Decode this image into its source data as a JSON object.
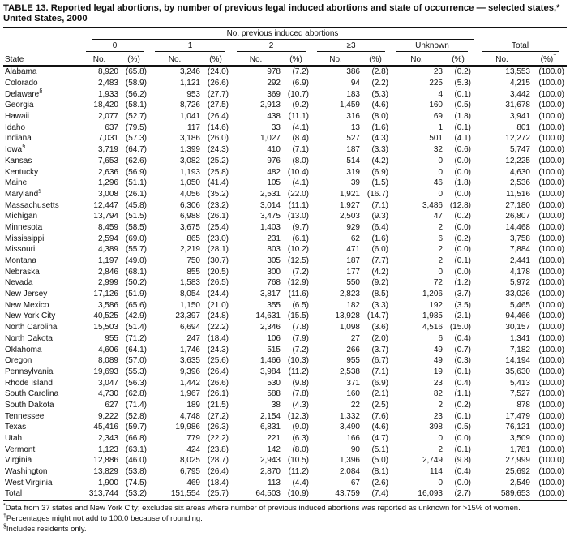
{
  "title": {
    "line1": "TABLE 13. Reported legal abortions, by number of previous legal induced abortions and state of occurrence — selected states,*",
    "line2": "United States, 2000"
  },
  "header": {
    "spanner": "No. previous induced abortions",
    "groups": [
      "0",
      "1",
      "2",
      "≥3",
      "Unknown",
      "Total"
    ],
    "state_col": "State",
    "no_label": "No.",
    "pct_label": "(%)",
    "total_marker": "†"
  },
  "rows": [
    {
      "state": "Alabama",
      "marker": "",
      "v": [
        "8,920",
        "(65.8)",
        "3,246",
        "(24.0)",
        "978",
        "(7.2)",
        "386",
        "(2.8)",
        "23",
        "(0.2)",
        "13,553",
        "(100.0)"
      ]
    },
    {
      "state": "Colorado",
      "marker": "",
      "v": [
        "2,483",
        "(58.9)",
        "1,121",
        "(26.6)",
        "292",
        "(6.9)",
        "94",
        "(2.2)",
        "225",
        "(5.3)",
        "4,215",
        "(100.0)"
      ]
    },
    {
      "state": "Delaware",
      "marker": "§",
      "v": [
        "1,933",
        "(56.2)",
        "953",
        "(27.7)",
        "369",
        "(10.7)",
        "183",
        "(5.3)",
        "4",
        "(0.1)",
        "3,442",
        "(100.0)"
      ]
    },
    {
      "state": "Georgia",
      "marker": "",
      "v": [
        "18,420",
        "(58.1)",
        "8,726",
        "(27.5)",
        "2,913",
        "(9.2)",
        "1,459",
        "(4.6)",
        "160",
        "(0.5)",
        "31,678",
        "(100.0)"
      ]
    },
    {
      "state": "Hawaii",
      "marker": "",
      "v": [
        "2,077",
        "(52.7)",
        "1,041",
        "(26.4)",
        "438",
        "(11.1)",
        "316",
        "(8.0)",
        "69",
        "(1.8)",
        "3,941",
        "(100.0)"
      ]
    },
    {
      "state": "Idaho",
      "marker": "",
      "v": [
        "637",
        "(79.5)",
        "117",
        "(14.6)",
        "33",
        "(4.1)",
        "13",
        "(1.6)",
        "1",
        "(0.1)",
        "801",
        "(100.0)"
      ]
    },
    {
      "state": "Indiana",
      "marker": "",
      "v": [
        "7,031",
        "(57.3)",
        "3,186",
        "(26.0)",
        "1,027",
        "(8.4)",
        "527",
        "(4.3)",
        "501",
        "(4.1)",
        "12,272",
        "(100.0)"
      ]
    },
    {
      "state": "Iowa",
      "marker": "§",
      "v": [
        "3,719",
        "(64.7)",
        "1,399",
        "(24.3)",
        "410",
        "(7.1)",
        "187",
        "(3.3)",
        "32",
        "(0.6)",
        "5,747",
        "(100.0)"
      ]
    },
    {
      "state": "Kansas",
      "marker": "",
      "v": [
        "7,653",
        "(62.6)",
        "3,082",
        "(25.2)",
        "976",
        "(8.0)",
        "514",
        "(4.2)",
        "0",
        "(0.0)",
        "12,225",
        "(100.0)"
      ]
    },
    {
      "state": "Kentucky",
      "marker": "",
      "v": [
        "2,636",
        "(56.9)",
        "1,193",
        "(25.8)",
        "482",
        "(10.4)",
        "319",
        "(6.9)",
        "0",
        "(0.0)",
        "4,630",
        "(100.0)"
      ]
    },
    {
      "state": "Maine",
      "marker": "",
      "v": [
        "1,296",
        "(51.1)",
        "1,050",
        "(41.4)",
        "105",
        "(4.1)",
        "39",
        "(1.5)",
        "46",
        "(1.8)",
        "2,536",
        "(100.0)"
      ]
    },
    {
      "state": "Maryland",
      "marker": "§",
      "v": [
        "3,008",
        "(26.1)",
        "4,056",
        "(35.2)",
        "2,531",
        "(22.0)",
        "1,921",
        "(16.7)",
        "0",
        "(0.0)",
        "11,516",
        "(100.0)"
      ]
    },
    {
      "state": "Massachusetts",
      "marker": "",
      "v": [
        "12,447",
        "(45.8)",
        "6,306",
        "(23.2)",
        "3,014",
        "(11.1)",
        "1,927",
        "(7.1)",
        "3,486",
        "(12.8)",
        "27,180",
        "(100.0)"
      ]
    },
    {
      "state": "Michigan",
      "marker": "",
      "v": [
        "13,794",
        "(51.5)",
        "6,988",
        "(26.1)",
        "3,475",
        "(13.0)",
        "2,503",
        "(9.3)",
        "47",
        "(0.2)",
        "26,807",
        "(100.0)"
      ]
    },
    {
      "state": "Minnesota",
      "marker": "",
      "v": [
        "8,459",
        "(58.5)",
        "3,675",
        "(25.4)",
        "1,403",
        "(9.7)",
        "929",
        "(6.4)",
        "2",
        "(0.0)",
        "14,468",
        "(100.0)"
      ]
    },
    {
      "state": "Mississippi",
      "marker": "",
      "v": [
        "2,594",
        "(69.0)",
        "865",
        "(23.0)",
        "231",
        "(6.1)",
        "62",
        "(1.6)",
        "6",
        "(0.2)",
        "3,758",
        "(100.0)"
      ]
    },
    {
      "state": "Missouri",
      "marker": "",
      "v": [
        "4,389",
        "(55.7)",
        "2,219",
        "(28.1)",
        "803",
        "(10.2)",
        "471",
        "(6.0)",
        "2",
        "(0.0)",
        "7,884",
        "(100.0)"
      ]
    },
    {
      "state": "Montana",
      "marker": "",
      "v": [
        "1,197",
        "(49.0)",
        "750",
        "(30.7)",
        "305",
        "(12.5)",
        "187",
        "(7.7)",
        "2",
        "(0.1)",
        "2,441",
        "(100.0)"
      ]
    },
    {
      "state": "Nebraska",
      "marker": "",
      "v": [
        "2,846",
        "(68.1)",
        "855",
        "(20.5)",
        "300",
        "(7.2)",
        "177",
        "(4.2)",
        "0",
        "(0.0)",
        "4,178",
        "(100.0)"
      ]
    },
    {
      "state": "Nevada",
      "marker": "",
      "v": [
        "2,999",
        "(50.2)",
        "1,583",
        "(26.5)",
        "768",
        "(12.9)",
        "550",
        "(9.2)",
        "72",
        "(1.2)",
        "5,972",
        "(100.0)"
      ]
    },
    {
      "state": "New Jersey",
      "marker": "",
      "v": [
        "17,126",
        "(51.9)",
        "8,054",
        "(24.4)",
        "3,817",
        "(11.6)",
        "2,823",
        "(8.5)",
        "1,206",
        "(3.7)",
        "33,026",
        "(100.0)"
      ]
    },
    {
      "state": "New Mexico",
      "marker": "",
      "v": [
        "3,586",
        "(65.6)",
        "1,150",
        "(21.0)",
        "355",
        "(6.5)",
        "182",
        "(3.3)",
        "192",
        "(3.5)",
        "5,465",
        "(100.0)"
      ]
    },
    {
      "state": "New York City",
      "marker": "",
      "v": [
        "40,525",
        "(42.9)",
        "23,397",
        "(24.8)",
        "14,631",
        "(15.5)",
        "13,928",
        "(14.7)",
        "1,985",
        "(2.1)",
        "94,466",
        "(100.0)"
      ]
    },
    {
      "state": "North Carolina",
      "marker": "",
      "v": [
        "15,503",
        "(51.4)",
        "6,694",
        "(22.2)",
        "2,346",
        "(7.8)",
        "1,098",
        "(3.6)",
        "4,516",
        "(15.0)",
        "30,157",
        "(100.0)"
      ]
    },
    {
      "state": "North Dakota",
      "marker": "",
      "v": [
        "955",
        "(71.2)",
        "247",
        "(18.4)",
        "106",
        "(7.9)",
        "27",
        "(2.0)",
        "6",
        "(0.4)",
        "1,341",
        "(100.0)"
      ]
    },
    {
      "state": "Oklahoma",
      "marker": "",
      "v": [
        "4,606",
        "(64.1)",
        "1,746",
        "(24.3)",
        "515",
        "(7.2)",
        "266",
        "(3.7)",
        "49",
        "(0.7)",
        "7,182",
        "(100.0)"
      ]
    },
    {
      "state": "Oregon",
      "marker": "",
      "v": [
        "8,089",
        "(57.0)",
        "3,635",
        "(25.6)",
        "1,466",
        "(10.3)",
        "955",
        "(6.7)",
        "49",
        "(0.3)",
        "14,194",
        "(100.0)"
      ]
    },
    {
      "state": "Pennsylvania",
      "marker": "",
      "v": [
        "19,693",
        "(55.3)",
        "9,396",
        "(26.4)",
        "3,984",
        "(11.2)",
        "2,538",
        "(7.1)",
        "19",
        "(0.1)",
        "35,630",
        "(100.0)"
      ]
    },
    {
      "state": "Rhode Island",
      "marker": "",
      "v": [
        "3,047",
        "(56.3)",
        "1,442",
        "(26.6)",
        "530",
        "(9.8)",
        "371",
        "(6.9)",
        "23",
        "(0.4)",
        "5,413",
        "(100.0)"
      ]
    },
    {
      "state": "South Carolina",
      "marker": "",
      "v": [
        "4,730",
        "(62.8)",
        "1,967",
        "(26.1)",
        "588",
        "(7.8)",
        "160",
        "(2.1)",
        "82",
        "(1.1)",
        "7,527",
        "(100.0)"
      ]
    },
    {
      "state": "South Dakota",
      "marker": "",
      "v": [
        "627",
        "(71.4)",
        "189",
        "(21.5)",
        "38",
        "(4.3)",
        "22",
        "(2.5)",
        "2",
        "(0.2)",
        "878",
        "(100.0)"
      ]
    },
    {
      "state": "Tennessee",
      "marker": "",
      "v": [
        "9,222",
        "(52.8)",
        "4,748",
        "(27.2)",
        "2,154",
        "(12.3)",
        "1,332",
        "(7.6)",
        "23",
        "(0.1)",
        "17,479",
        "(100.0)"
      ]
    },
    {
      "state": "Texas",
      "marker": "",
      "v": [
        "45,416",
        "(59.7)",
        "19,986",
        "(26.3)",
        "6,831",
        "(9.0)",
        "3,490",
        "(4.6)",
        "398",
        "(0.5)",
        "76,121",
        "(100.0)"
      ]
    },
    {
      "state": "Utah",
      "marker": "",
      "v": [
        "2,343",
        "(66.8)",
        "779",
        "(22.2)",
        "221",
        "(6.3)",
        "166",
        "(4.7)",
        "0",
        "(0.0)",
        "3,509",
        "(100.0)"
      ]
    },
    {
      "state": "Vermont",
      "marker": "",
      "v": [
        "1,123",
        "(63.1)",
        "424",
        "(23.8)",
        "142",
        "(8.0)",
        "90",
        "(5.1)",
        "2",
        "(0.1)",
        "1,781",
        "(100.0)"
      ]
    },
    {
      "state": "Virginia",
      "marker": "",
      "v": [
        "12,886",
        "(46.0)",
        "8,025",
        "(28.7)",
        "2,943",
        "(10.5)",
        "1,396",
        "(5.0)",
        "2,749",
        "(9.8)",
        "27,999",
        "(100.0)"
      ]
    },
    {
      "state": "Washington",
      "marker": "",
      "v": [
        "13,829",
        "(53.8)",
        "6,795",
        "(26.4)",
        "2,870",
        "(11.2)",
        "2,084",
        "(8.1)",
        "114",
        "(0.4)",
        "25,692",
        "(100.0)"
      ]
    },
    {
      "state": "West Virginia",
      "marker": "",
      "v": [
        "1,900",
        "(74.5)",
        "469",
        "(18.4)",
        "113",
        "(4.4)",
        "67",
        "(2.6)",
        "0",
        "(0.0)",
        "2,549",
        "(100.0)"
      ]
    },
    {
      "state": "Total",
      "marker": "",
      "total": true,
      "v": [
        "313,744",
        "(53.2)",
        "151,554",
        "(25.7)",
        "64,503",
        "(10.9)",
        "43,759",
        "(7.4)",
        "16,093",
        "(2.7)",
        "589,653",
        "(100.0)"
      ]
    }
  ],
  "footnotes": [
    {
      "marker": "*",
      "text": "Data from 37 states and New York City; excludes six areas where number of previous induced abortions was reported as unknown for >15% of women."
    },
    {
      "marker": "†",
      "text": "Percentages might not add to 100.0 because of rounding."
    },
    {
      "marker": "§",
      "text": "Includes residents only."
    }
  ]
}
